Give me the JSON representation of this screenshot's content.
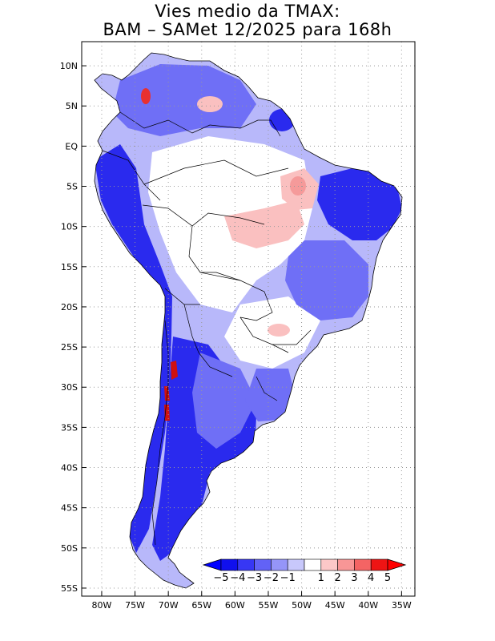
{
  "title": {
    "line1": "Vies medio da TMAX:",
    "line2": "BAM – SAMet 12/2025  para 168h"
  },
  "map": {
    "lat_labels": [
      "10N",
      "5N",
      "EQ",
      "5S",
      "10S",
      "15S",
      "20S",
      "25S",
      "30S",
      "35S",
      "40S",
      "45S",
      "50S",
      "55S"
    ],
    "lon_labels": [
      "80W",
      "75W",
      "70W",
      "65W",
      "60W",
      "55W",
      "50W",
      "45W",
      "40W",
      "35W"
    ],
    "lon_range": [
      -83,
      -33
    ],
    "lat_range": [
      13,
      -56
    ]
  },
  "colorbar": {
    "labels": [
      "−5",
      "−4",
      "−3",
      "−2",
      "−1",
      "1",
      "2",
      "3",
      "4",
      "5"
    ],
    "colors": [
      "#1010ee",
      "#3737f4",
      "#6262f6",
      "#9595f8",
      "#c8c8fb",
      "#ffffff",
      "#fcc8c8",
      "#f89696",
      "#f46464",
      "#ee1414"
    ],
    "under_color": "#0000ff",
    "over_color": "#ff0000"
  },
  "colors": {
    "neg_strong": "#2a2aee",
    "neg_mid": "#6f6ff6",
    "neg_light": "#b8b8fa",
    "pos_light": "#fac0c0",
    "pos_strong": "#e83030",
    "border": "#000000",
    "grid": "#999999"
  }
}
